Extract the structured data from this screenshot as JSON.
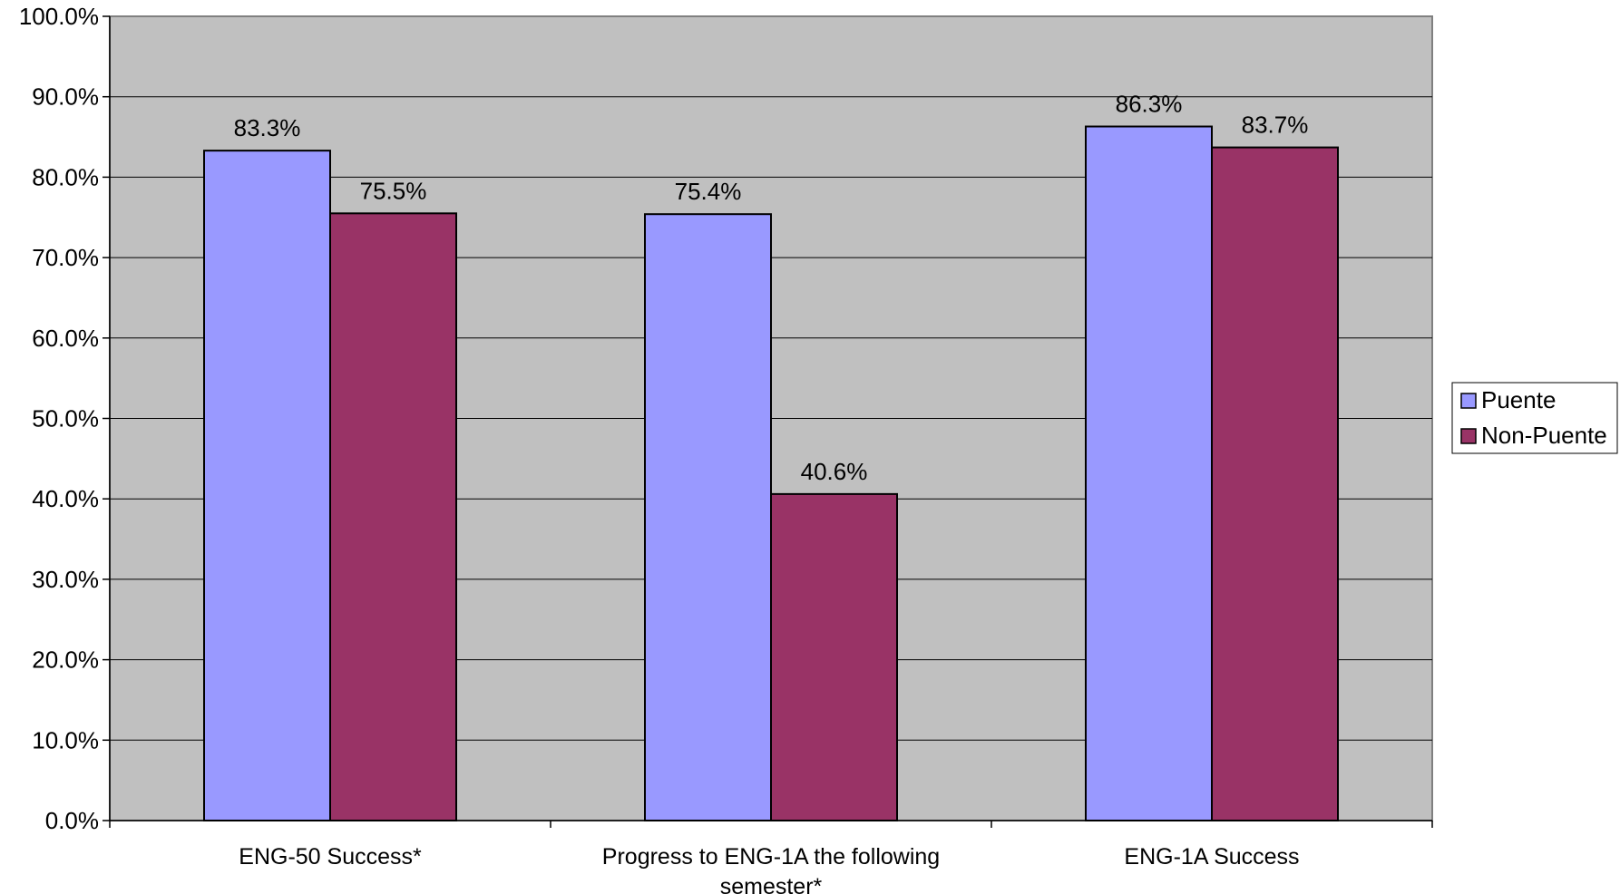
{
  "chart_data": {
    "type": "bar",
    "categories": [
      [
        "ENG-50 Success*"
      ],
      [
        "Progress to ENG-1A the following",
        "semester*"
      ],
      [
        "ENG-1A Success"
      ]
    ],
    "series": [
      {
        "name": "Puente",
        "values": [
          83.3,
          75.4,
          86.3
        ],
        "color": "#9999FF"
      },
      {
        "name": "Non-Puente",
        "values": [
          75.5,
          40.6,
          83.7
        ],
        "color": "#993366"
      }
    ],
    "ylim": [
      0,
      100
    ],
    "yticks": [
      0,
      10,
      20,
      30,
      40,
      50,
      60,
      70,
      80,
      90,
      100
    ],
    "value_suffix": "%",
    "plot_background": "#C0C0C0",
    "grid": true,
    "legend_position": "right"
  }
}
